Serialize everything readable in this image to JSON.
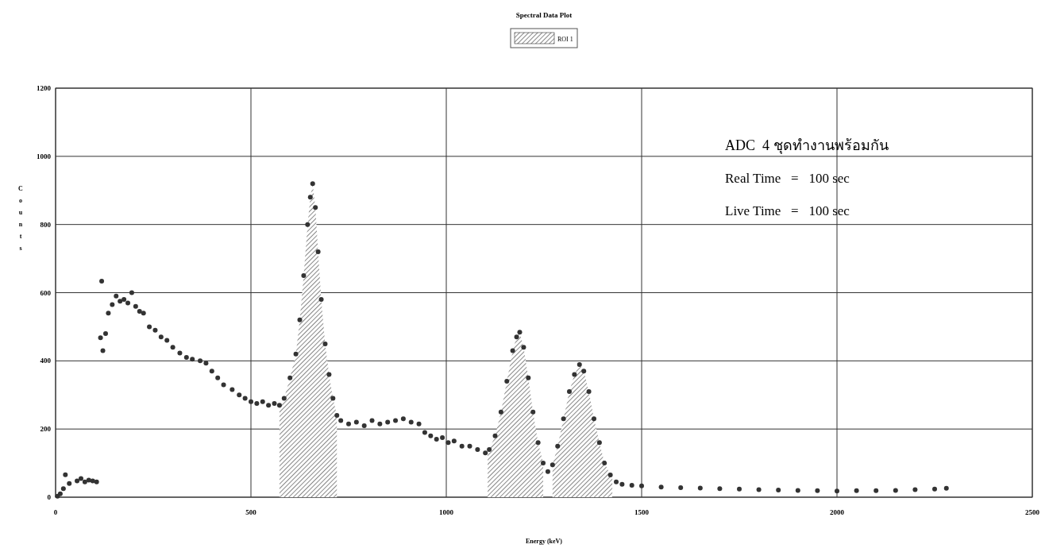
{
  "chart_data": {
    "type": "scatter",
    "title": "Spectral Data Plot",
    "xlabel": "Energy (keV)",
    "ylabel": "Counts",
    "xlim": [
      0,
      2500
    ],
    "xticks": [
      0,
      500,
      1000,
      1500,
      2000,
      2500
    ],
    "ylim": [
      0,
      1200
    ],
    "yticks": [
      0,
      200,
      400,
      600,
      800,
      1000,
      1200
    ],
    "grid": true,
    "legend": "top",
    "annotations": [
      "ADC  4 ชุดทำงานพร้อมกัน",
      "Real Time   =   100 sec",
      "Live Time   =   100 sec"
    ],
    "series": [
      {
        "type": "area",
        "name": "ROI 1",
        "color": "#555555",
        "x": [
          573,
          585,
          600,
          615,
          625,
          635,
          645,
          652,
          658,
          665,
          672,
          680,
          690,
          700,
          710,
          720,
          721,
          1105,
          1106,
          1110,
          1125,
          1140,
          1155,
          1170,
          1180,
          1188,
          1198,
          1210,
          1222,
          1235,
          1248,
          1250,
          1271,
          1272,
          1285,
          1300,
          1315,
          1328,
          1341,
          1352,
          1365,
          1378,
          1392,
          1405,
          1420,
          1425
        ],
        "values": [
          270,
          290,
          350,
          420,
          520,
          650,
          800,
          880,
          920,
          850,
          720,
          580,
          450,
          360,
          290,
          240,
          null,
          null,
          135,
          140,
          180,
          250,
          340,
          430,
          470,
          484,
          440,
          350,
          250,
          160,
          100,
          null,
          null,
          95,
          150,
          230,
          310,
          360,
          389,
          370,
          310,
          230,
          160,
          100,
          65,
          60
        ]
      },
      {
        "type": "scatter",
        "marker": "circle",
        "color": "#333333",
        "x": [
          5,
          12,
          20,
          25,
          35,
          55,
          65,
          75,
          85,
          95,
          105,
          115,
          118,
          121,
          128,
          135,
          145,
          155,
          165,
          175,
          185,
          195,
          205,
          215,
          225,
          240,
          255,
          270,
          285,
          300,
          318,
          335,
          350,
          370,
          385,
          400,
          415,
          430,
          452,
          470,
          485,
          500,
          515,
          530,
          545,
          560,
          573,
          585,
          600,
          615,
          625,
          635,
          645,
          652,
          658,
          665,
          672,
          680,
          690,
          700,
          710,
          720,
          730,
          750,
          770,
          790,
          810,
          830,
          850,
          870,
          890,
          910,
          930,
          945,
          960,
          975,
          990,
          1005,
          1020,
          1040,
          1060,
          1080,
          1100,
          1110,
          1125,
          1140,
          1155,
          1170,
          1180,
          1188,
          1198,
          1210,
          1222,
          1235,
          1248,
          1260,
          1272,
          1285,
          1300,
          1315,
          1328,
          1341,
          1352,
          1365,
          1378,
          1392,
          1405,
          1420,
          1435,
          1450,
          1475,
          1500,
          1550,
          1600,
          1650,
          1700,
          1750,
          1800,
          1850,
          1900,
          1950,
          2000,
          2050,
          2100,
          2150,
          2200,
          2250,
          2280
        ],
        "values": [
          3,
          10,
          25,
          66,
          40,
          48,
          55,
          45,
          50,
          48,
          45,
          468,
          634,
          430,
          480,
          540,
          565,
          590,
          575,
          580,
          570,
          600,
          560,
          545,
          540,
          500,
          490,
          470,
          460,
          440,
          423,
          410,
          405,
          400,
          393,
          370,
          350,
          330,
          316,
          300,
          290,
          280,
          275,
          280,
          270,
          275,
          270,
          290,
          350,
          420,
          520,
          650,
          800,
          880,
          920,
          850,
          720,
          580,
          450,
          360,
          290,
          240,
          225,
          215,
          220,
          210,
          225,
          215,
          220,
          225,
          230,
          220,
          215,
          190,
          180,
          170,
          175,
          160,
          165,
          150,
          150,
          140,
          130,
          140,
          180,
          250,
          340,
          430,
          470,
          484,
          440,
          350,
          250,
          160,
          100,
          75,
          95,
          150,
          230,
          310,
          360,
          389,
          370,
          310,
          230,
          160,
          100,
          65,
          45,
          38,
          35,
          33,
          30,
          28,
          27,
          25,
          24,
          22,
          21,
          20,
          19,
          18,
          19,
          19,
          20,
          22,
          24,
          26
        ]
      }
    ]
  }
}
